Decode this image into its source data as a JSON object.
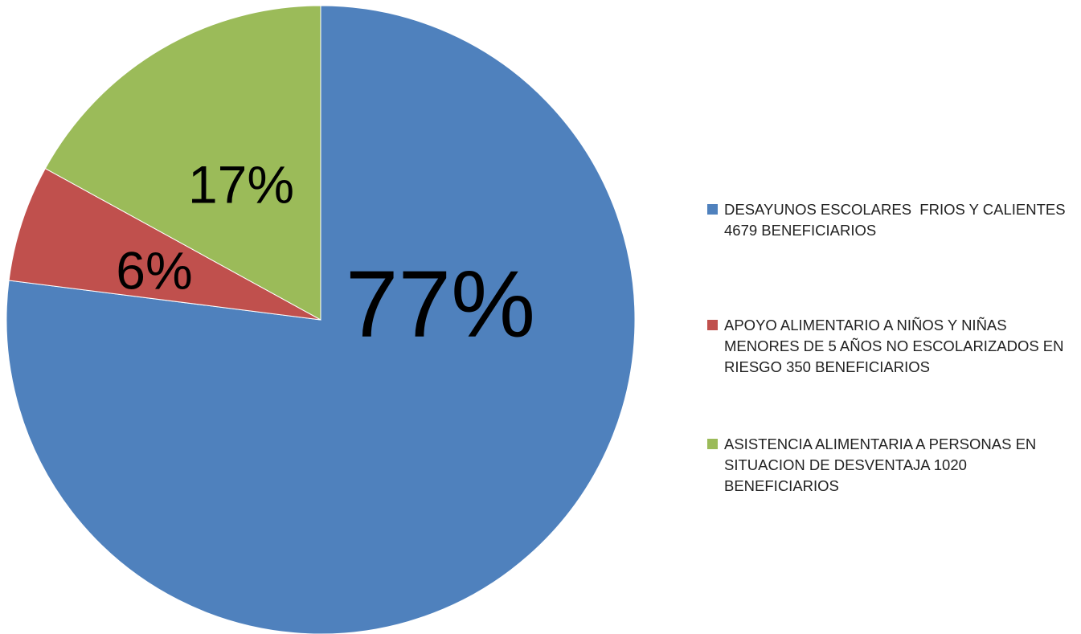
{
  "chart_data": {
    "type": "pie",
    "categories": [
      "DESAYUNOS ESCOLARES  FRIOS Y CALIENTES 4679 BENEFICIARIOS",
      "APOYO ALIMENTARIO A NIÑOS Y NIÑAS MENORES DE 5 AÑOS NO ESCOLARIZADOS EN RIESGO 350 BENEFICIARIOS",
      "ASISTENCIA ALIMENTARIA A PERSONAS EN SITUACION DE DESVENTAJA 1020 BENEFICIARIOS"
    ],
    "values": [
      77,
      6,
      17
    ],
    "value_labels": [
      "77%",
      "6%",
      "17%"
    ],
    "colors": [
      "#4f81bd",
      "#c0504d",
      "#9bbb59"
    ],
    "legend": "right"
  }
}
